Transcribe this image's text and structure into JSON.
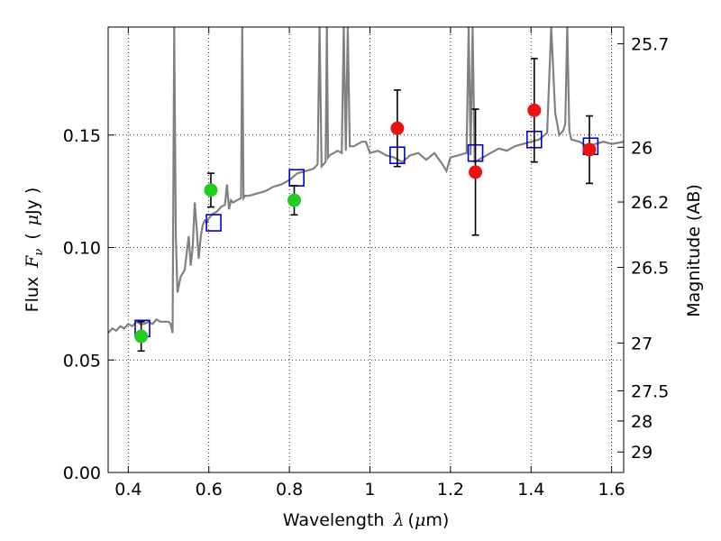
{
  "chart_data": {
    "type": "scatter",
    "title": "",
    "xlabel": {
      "text": "Wavelength",
      "symbol": "λ",
      "unit_open": "(",
      "unit_mu": "μ",
      "unit_rest": "m)"
    },
    "ylabel": {
      "text": "Flux",
      "symbol": "F",
      "subscript": "ν",
      "unit_open": "(",
      "unit_mu": "μ",
      "unit_rest": "Jy )"
    },
    "y2label": "Magnitude (AB)",
    "xlim": [
      0.35,
      1.63
    ],
    "ylim": [
      0.0,
      0.198
    ],
    "grid": true,
    "xticks": [
      0.4,
      0.6,
      0.8,
      1.0,
      1.2,
      1.4,
      1.6
    ],
    "xtick_labels": [
      "0.4",
      "0.6",
      "0.8",
      "1",
      "1.2",
      "1.4",
      "1.6"
    ],
    "yticks": [
      0.0,
      0.05,
      0.1,
      0.15
    ],
    "ytick_labels": [
      "0.00",
      "0.05",
      "0.10",
      "0.15"
    ],
    "y2ticks": [
      25.7,
      26,
      26.2,
      26.5,
      27,
      27.5,
      28,
      29
    ],
    "y2tick_labels": [
      "25.7",
      "26",
      "26.2",
      "26.5",
      "27",
      "27.5",
      "28",
      "29"
    ],
    "colors": {
      "spectrum": "#808080",
      "model": "#0000cc",
      "optical": "#22cc22",
      "nir": "#ee1111",
      "errorbar": "#000000"
    },
    "spectrum": {
      "name": "",
      "x": [
        0.35,
        0.36,
        0.37,
        0.38,
        0.39,
        0.4,
        0.41,
        0.42,
        0.43,
        0.44,
        0.45,
        0.46,
        0.47,
        0.48,
        0.49,
        0.5,
        0.505,
        0.51,
        0.512,
        0.514,
        0.518,
        0.522,
        0.53,
        0.54,
        0.55,
        0.555,
        0.56,
        0.565,
        0.57,
        0.575,
        0.58,
        0.585,
        0.59,
        0.595,
        0.6,
        0.61,
        0.62,
        0.63,
        0.64,
        0.645,
        0.65,
        0.655,
        0.66,
        0.67,
        0.68,
        0.683,
        0.686,
        0.69,
        0.7,
        0.72,
        0.74,
        0.76,
        0.78,
        0.8,
        0.82,
        0.84,
        0.86,
        0.87,
        0.875,
        0.88,
        0.89,
        0.893,
        0.896,
        0.9,
        0.91,
        0.92,
        0.93,
        0.935,
        0.94,
        0.945,
        0.95,
        0.96,
        0.97,
        0.98,
        0.99,
        1.0,
        1.02,
        1.04,
        1.06,
        1.08,
        1.1,
        1.12,
        1.14,
        1.16,
        1.18,
        1.19,
        1.2,
        1.22,
        1.24,
        1.245,
        1.25,
        1.255,
        1.26,
        1.28,
        1.3,
        1.32,
        1.34,
        1.36,
        1.38,
        1.4,
        1.42,
        1.44,
        1.45,
        1.46,
        1.47,
        1.48,
        1.485,
        1.49,
        1.495,
        1.5,
        1.52,
        1.54,
        1.56,
        1.58,
        1.6,
        1.63
      ],
      "y": [
        0.062,
        0.064,
        0.063,
        0.065,
        0.064,
        0.066,
        0.065,
        0.067,
        0.066,
        0.066,
        0.067,
        0.066,
        0.068,
        0.067,
        0.067,
        0.067,
        0.066,
        0.062,
        0.13,
        0.198,
        0.105,
        0.08,
        0.087,
        0.09,
        0.105,
        0.092,
        0.1,
        0.12,
        0.108,
        0.095,
        0.105,
        0.11,
        0.112,
        0.111,
        0.113,
        0.115,
        0.116,
        0.118,
        0.119,
        0.128,
        0.117,
        0.121,
        0.12,
        0.121,
        0.122,
        0.198,
        0.122,
        0.123,
        0.123,
        0.124,
        0.125,
        0.127,
        0.128,
        0.13,
        0.133,
        0.134,
        0.135,
        0.137,
        0.198,
        0.136,
        0.138,
        0.198,
        0.14,
        0.141,
        0.142,
        0.143,
        0.142,
        0.198,
        0.143,
        0.198,
        0.145,
        0.145,
        0.146,
        0.147,
        0.147,
        0.142,
        0.143,
        0.141,
        0.14,
        0.138,
        0.141,
        0.142,
        0.139,
        0.142,
        0.137,
        0.134,
        0.14,
        0.141,
        0.142,
        0.198,
        0.141,
        0.198,
        0.138,
        0.14,
        0.142,
        0.144,
        0.143,
        0.145,
        0.146,
        0.147,
        0.148,
        0.151,
        0.198,
        0.16,
        0.15,
        0.152,
        0.155,
        0.198,
        0.152,
        0.148,
        0.147,
        0.145,
        0.146,
        0.147,
        0.146,
        0.147
      ]
    },
    "model_points": {
      "name": "",
      "x": [
        0.435,
        0.612,
        0.818,
        1.068,
        1.262,
        1.408,
        1.548
      ],
      "y": [
        0.064,
        0.111,
        0.131,
        0.141,
        0.142,
        0.148,
        0.145
      ]
    },
    "optical_points": {
      "name": "",
      "x": [
        0.432,
        0.605,
        0.812
      ],
      "y": [
        0.0605,
        0.1255,
        0.121
      ],
      "yerr": [
        0.0065,
        0.0075,
        0.0065
      ]
    },
    "nir_points": {
      "name": "",
      "x": [
        1.068,
        1.262,
        1.408,
        1.545
      ],
      "y": [
        0.153,
        0.1335,
        0.161,
        0.1435
      ],
      "yerr": [
        0.017,
        0.028,
        0.023,
        0.015
      ]
    }
  }
}
